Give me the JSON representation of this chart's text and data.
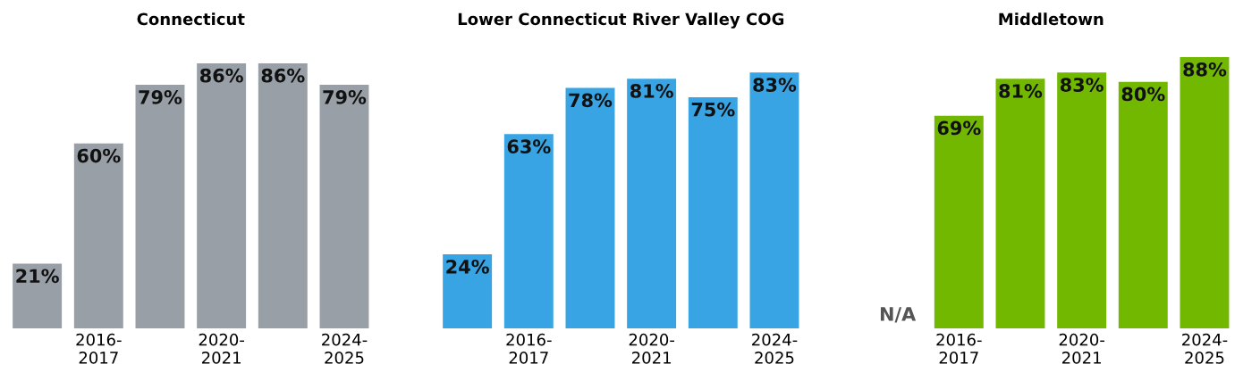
{
  "chart_data": [
    {
      "type": "bar",
      "title": "Connecticut",
      "categories": [
        null,
        "2016-\n2017",
        null,
        "2020-\n2021",
        null,
        "2024-\n2025"
      ],
      "values": [
        21,
        60,
        79,
        86,
        86,
        79
      ],
      "color": "#989fa6",
      "value_labels": [
        "21%",
        "60%",
        "79%",
        "86%",
        "86%",
        "79%"
      ]
    },
    {
      "type": "bar",
      "title": "Lower Connecticut River Valley COG",
      "categories": [
        null,
        "2016-\n2017",
        null,
        "2020-\n2021",
        null,
        "2024-\n2025"
      ],
      "values": [
        24,
        63,
        78,
        81,
        75,
        83
      ],
      "color": "#38a4e3",
      "value_labels": [
        "24%",
        "63%",
        "78%",
        "81%",
        "75%",
        "83%"
      ]
    },
    {
      "type": "bar",
      "title": "Middletown",
      "categories": [
        null,
        "2016-\n2017",
        null,
        "2020-\n2021",
        null,
        "2024-\n2025"
      ],
      "values": [
        null,
        69,
        81,
        83,
        80,
        88
      ],
      "color": "#72b800",
      "value_labels": [
        "N/A",
        "69%",
        "81%",
        "83%",
        "80%",
        "88%"
      ]
    }
  ]
}
